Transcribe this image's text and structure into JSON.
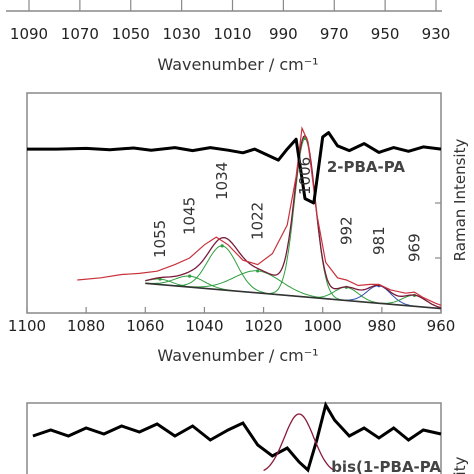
{
  "chart_data": [
    {
      "type": "line",
      "panel": "top",
      "xlabel": "Wavenumber / cm⁻¹",
      "xlim": [
        1090,
        930
      ],
      "xticks": [
        1090,
        1070,
        1050,
        1030,
        1010,
        990,
        970,
        950,
        930
      ],
      "series": []
    },
    {
      "type": "line",
      "panel": "middle",
      "sample_label": "2-PBA-PA",
      "xlabel": "Wavenumber / cm⁻¹",
      "ylabel": "Raman Intensity",
      "xlim": [
        1100,
        960
      ],
      "xticks": [
        1100,
        1080,
        1060,
        1040,
        1020,
        1000,
        980,
        960
      ],
      "ylim": [
        0,
        1
      ],
      "peak_labels": [
        "1055",
        "1045",
        "1034",
        "1022",
        "1006",
        "992",
        "981",
        "969"
      ],
      "peak_positions": [
        1055,
        1045,
        1034,
        1022,
        1006,
        992,
        981,
        969
      ],
      "colors": {
        "spectrum": "#c8323c",
        "fit": "#7a1a3a",
        "component": "#2e9e3e",
        "component_alt": "#2a4fb0",
        "baseline": "#333333",
        "derivative": "#000000"
      },
      "baseline": [
        [
          1060,
          0.135
        ],
        [
          960,
          0.02
        ]
      ],
      "spectrum": [
        [
          1083,
          0.15
        ],
        [
          1075,
          0.16
        ],
        [
          1068,
          0.175
        ],
        [
          1062,
          0.18
        ],
        [
          1056,
          0.19
        ],
        [
          1050,
          0.22
        ],
        [
          1045,
          0.25
        ],
        [
          1040,
          0.31
        ],
        [
          1036,
          0.345
        ],
        [
          1032,
          0.31
        ],
        [
          1027,
          0.24
        ],
        [
          1022,
          0.22
        ],
        [
          1017,
          0.27
        ],
        [
          1012,
          0.4
        ],
        [
          1009,
          0.62
        ],
        [
          1007,
          0.84
        ],
        [
          1005,
          0.78
        ],
        [
          1002,
          0.45
        ],
        [
          999,
          0.23
        ],
        [
          995,
          0.16
        ],
        [
          992,
          0.15
        ],
        [
          988,
          0.125
        ],
        [
          984,
          0.13
        ],
        [
          981,
          0.13
        ],
        [
          977,
          0.105
        ],
        [
          972,
          0.09
        ],
        [
          969,
          0.095
        ],
        [
          966,
          0.07
        ],
        [
          962,
          0.045
        ],
        [
          960,
          0.035
        ]
      ],
      "components": [
        {
          "center": 1055,
          "height": 0.025,
          "width": 4
        },
        {
          "center": 1045,
          "height": 0.05,
          "width": 5
        },
        {
          "center": 1034,
          "height": 0.2,
          "width": 5
        },
        {
          "center": 1022,
          "height": 0.1,
          "width": 8
        },
        {
          "center": 1006,
          "height": 0.72,
          "width": 3.5
        },
        {
          "center": 992,
          "height": 0.06,
          "width": 4
        },
        {
          "center": 981,
          "height": 0.08,
          "width": 4
        },
        {
          "center": 969,
          "height": 0.05,
          "width": 4
        }
      ],
      "derivative": [
        [
          1100,
          0.745
        ],
        [
          1090,
          0.745
        ],
        [
          1080,
          0.748
        ],
        [
          1072,
          0.742
        ],
        [
          1064,
          0.75
        ],
        [
          1058,
          0.74
        ],
        [
          1050,
          0.752
        ],
        [
          1044,
          0.738
        ],
        [
          1038,
          0.752
        ],
        [
          1032,
          0.74
        ],
        [
          1027,
          0.728
        ],
        [
          1023,
          0.745
        ],
        [
          1019,
          0.72
        ],
        [
          1015,
          0.695
        ],
        [
          1012,
          0.745
        ],
        [
          1009,
          0.79
        ],
        [
          1006,
          0.52
        ],
        [
          1003,
          0.5
        ],
        [
          1000,
          0.8
        ],
        [
          998,
          0.82
        ],
        [
          995,
          0.76
        ],
        [
          991,
          0.738
        ],
        [
          986,
          0.77
        ],
        [
          981,
          0.73
        ],
        [
          976,
          0.752
        ],
        [
          971,
          0.735
        ],
        [
          966,
          0.755
        ],
        [
          960,
          0.745
        ]
      ]
    },
    {
      "type": "line",
      "panel": "bottom",
      "sample_label": "bis(1-PBA-PA",
      "ylabel": "ity",
      "series": []
    }
  ]
}
